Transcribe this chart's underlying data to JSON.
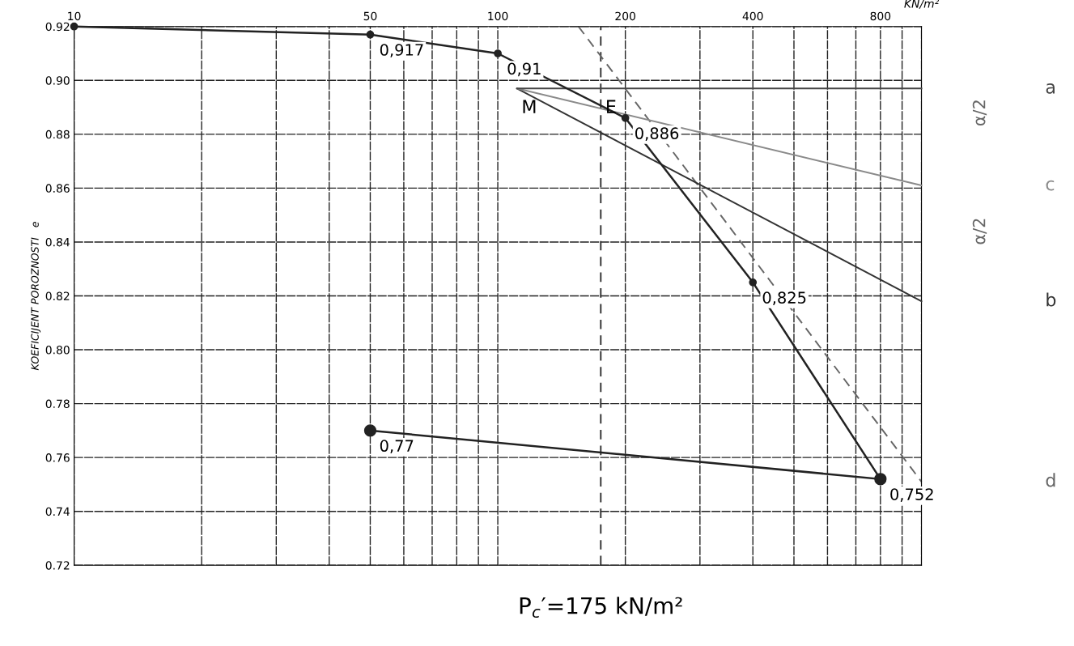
{
  "chart_data": {
    "type": "line",
    "ylabel": "KOEFICIJENT POROZNOSTI   e",
    "xlabel": "KN/m²",
    "log": "x",
    "grid": true,
    "marker": "circle",
    "xlim": [
      10,
      1000
    ],
    "ylim": [
      0.72,
      0.92
    ],
    "xticks": [
      10,
      {
        "value": 20,
        "label": null
      },
      {
        "value": 30,
        "label": null
      },
      {
        "value": 40,
        "label": null
      },
      50,
      {
        "value": 60,
        "label": null
      },
      {
        "value": 70,
        "label": null
      },
      {
        "value": 80,
        "label": null
      },
      {
        "value": 90,
        "label": null
      },
      100,
      200,
      {
        "value": 300,
        "label": null
      },
      400,
      {
        "value": 500,
        "label": null
      },
      {
        "value": 600,
        "label": null
      },
      {
        "value": 700,
        "label": null
      },
      800,
      {
        "value": 900,
        "label": null
      },
      {
        "value": 1000,
        "label": null
      }
    ],
    "yticks": [
      {
        "value": 0.72,
        "label": "0.72"
      },
      {
        "value": 0.74,
        "label": "0.74"
      },
      {
        "value": 0.76,
        "label": "0.76"
      },
      {
        "value": 0.78,
        "label": "0.78"
      },
      {
        "value": 0.8,
        "label": "0.80"
      },
      {
        "value": 0.82,
        "label": "0.82"
      },
      {
        "value": 0.84,
        "label": "0.84"
      },
      {
        "value": 0.86,
        "label": "0.86"
      },
      {
        "value": 0.88,
        "label": "0.88"
      },
      {
        "value": 0.9,
        "label": "0.90"
      },
      {
        "value": 0.92,
        "label": "0.92"
      }
    ],
    "series": [
      {
        "color": "#222222",
        "x": [
          10,
          50,
          100,
          200,
          400,
          800
        ],
        "values": [
          0.92,
          0.917,
          0.91,
          0.886,
          0.825,
          0.752
        ],
        "value_labels": [
          null,
          "0,917",
          "0,91",
          "0,886",
          "0,825",
          "0,752"
        ]
      },
      {
        "color": "#222222",
        "x": [
          800,
          50
        ],
        "values": [
          0.752,
          0.77
        ],
        "value_labels": [
          null,
          "0,77"
        ]
      },
      {
        "name": "a",
        "color": "#444444",
        "marker": "none",
        "x": [
          111,
          1000
        ],
        "values": [
          0.897,
          0.897
        ]
      },
      {
        "name": "c",
        "color": "#8a8a8a",
        "marker": "none",
        "x": [
          111,
          1000
        ],
        "values": [
          0.897,
          0.861
        ]
      },
      {
        "name": "b",
        "color": "#333333",
        "marker": "none",
        "x": [
          111,
          1000
        ],
        "values": [
          0.897,
          0.818
        ]
      },
      {
        "name": "d",
        "color": "#666666",
        "marker": "none",
        "line_style": "dashed",
        "x": [
          155,
          1000
        ],
        "values": [
          0.92,
          0.751
        ]
      }
    ],
    "ref_lines": [
      {
        "axis": "x",
        "value": 175,
        "label": "P$_{c}$′=175 kN/m²",
        "color": "#333333",
        "line_style": "dashed"
      }
    ],
    "annotations": [
      {
        "text": "M",
        "x": 111,
        "y": 0.897
      },
      {
        "text": "E",
        "x": 175,
        "y": 0.897
      },
      "α/2",
      "α/2"
    ]
  }
}
